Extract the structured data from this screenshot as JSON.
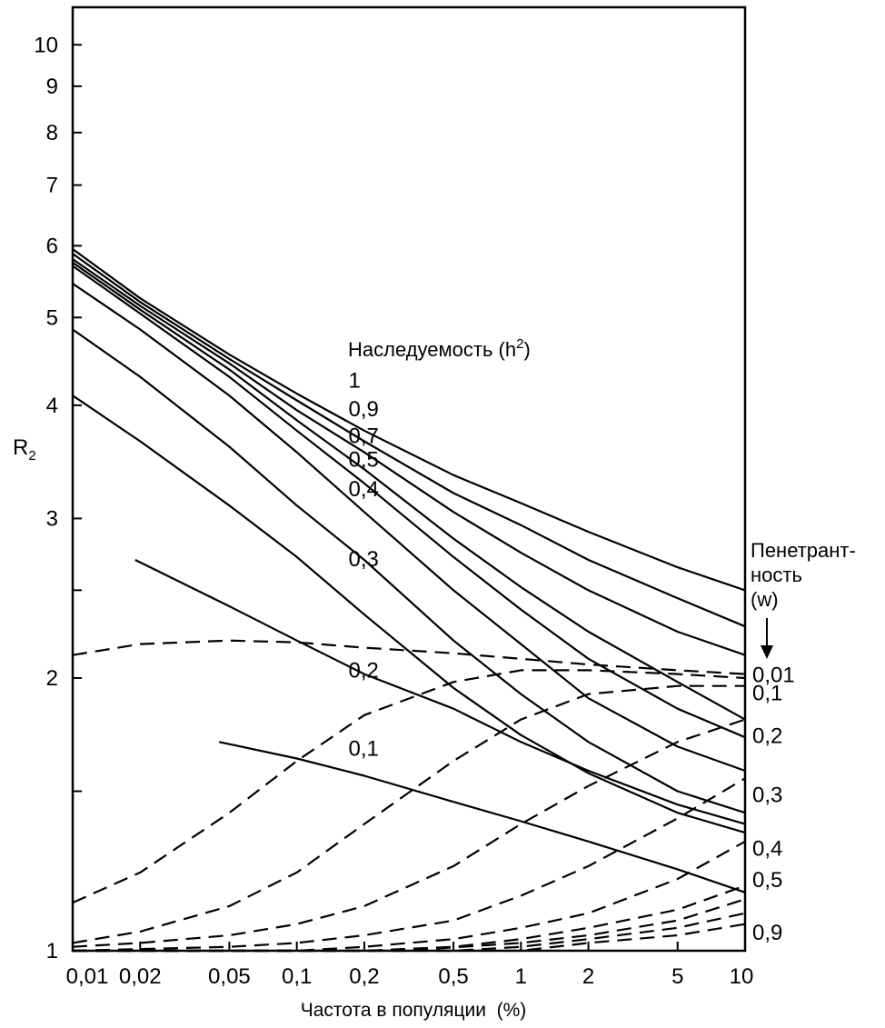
{
  "chart_data": {
    "type": "line",
    "title": "",
    "xlabel": "Частота в популяции  (%)",
    "ylabel": "R",
    "ylabel_subscript": "2",
    "x_scale": "log",
    "y_scale": "log",
    "xlim": [
      0.01,
      10
    ],
    "ylim": [
      1,
      11
    ],
    "x_ticks": [
      {
        "value": 0.01,
        "label": "0,01"
      },
      {
        "value": 0.02,
        "label": "0,02"
      },
      {
        "value": 0.05,
        "label": "0,05"
      },
      {
        "value": 0.1,
        "label": "0,1"
      },
      {
        "value": 0.2,
        "label": "0,2"
      },
      {
        "value": 0.5,
        "label": "0,5"
      },
      {
        "value": 1,
        "label": "1"
      },
      {
        "value": 2,
        "label": "2"
      },
      {
        "value": 5,
        "label": "5"
      },
      {
        "value": 10,
        "label": "10"
      }
    ],
    "y_ticks": [
      {
        "value": 1,
        "label": "1"
      },
      {
        "value": 1.5,
        "label": ""
      },
      {
        "value": 2,
        "label": "2"
      },
      {
        "value": 2.5,
        "label": ""
      },
      {
        "value": 3,
        "label": "3"
      },
      {
        "value": 4,
        "label": "4"
      },
      {
        "value": 5,
        "label": "5"
      },
      {
        "value": 6,
        "label": "6"
      },
      {
        "value": 7,
        "label": "7"
      },
      {
        "value": 8,
        "label": "8"
      },
      {
        "value": 9,
        "label": "9"
      },
      {
        "value": 10,
        "label": "10"
      }
    ],
    "heritability_title_text": "Наследуемость (h",
    "heritability_title_sup": "2",
    "heritability_title_close": ")",
    "penetrance_title_lines": [
      "Пенетрант-",
      "ность",
      "(w)"
    ],
    "series": [
      {
        "name": "1",
        "group": "heritability",
        "style": "solid",
        "label_at": [
          0.17,
          4.28
        ],
        "points": [
          [
            0.01,
            5.95
          ],
          [
            0.02,
            5.25
          ],
          [
            0.05,
            4.55
          ],
          [
            0.1,
            4.12
          ],
          [
            0.2,
            3.75
          ],
          [
            0.5,
            3.35
          ],
          [
            1,
            3.12
          ],
          [
            2,
            2.9
          ],
          [
            5,
            2.65
          ],
          [
            10,
            2.5
          ]
        ]
      },
      {
        "name": "0,9",
        "group": "heritability",
        "style": "solid",
        "label_at": [
          0.17,
          3.98
        ],
        "points": [
          [
            0.01,
            5.88
          ],
          [
            0.02,
            5.2
          ],
          [
            0.05,
            4.5
          ],
          [
            0.1,
            4.05
          ],
          [
            0.2,
            3.65
          ],
          [
            0.5,
            3.2
          ],
          [
            1,
            2.95
          ],
          [
            2,
            2.7
          ],
          [
            5,
            2.45
          ],
          [
            10,
            2.28
          ]
        ]
      },
      {
        "name": "0,7",
        "group": "heritability",
        "style": "solid",
        "label_at": [
          0.17,
          3.72
        ],
        "points": [
          [
            0.01,
            5.8
          ],
          [
            0.02,
            5.15
          ],
          [
            0.05,
            4.45
          ],
          [
            0.1,
            3.95
          ],
          [
            0.2,
            3.55
          ],
          [
            0.5,
            3.05
          ],
          [
            1,
            2.75
          ],
          [
            2,
            2.5
          ],
          [
            5,
            2.25
          ],
          [
            10,
            2.12
          ]
        ]
      },
      {
        "name": "0,5",
        "group": "heritability",
        "style": "solid",
        "label_at": [
          0.17,
          3.5
        ],
        "points": [
          [
            0.01,
            5.75
          ],
          [
            0.02,
            5.1
          ],
          [
            0.05,
            4.38
          ],
          [
            0.1,
            3.85
          ],
          [
            0.2,
            3.4
          ],
          [
            0.5,
            2.85
          ],
          [
            1,
            2.52
          ],
          [
            2,
            2.25
          ],
          [
            5,
            1.98
          ],
          [
            10,
            1.8
          ]
        ]
      },
      {
        "name": "0,4",
        "group": "heritability",
        "style": "solid",
        "label_at": [
          0.17,
          3.25
        ],
        "points": [
          [
            0.01,
            5.7
          ],
          [
            0.02,
            5.05
          ],
          [
            0.05,
            4.3
          ],
          [
            0.1,
            3.75
          ],
          [
            0.2,
            3.28
          ],
          [
            0.5,
            2.72
          ],
          [
            1,
            2.38
          ],
          [
            2,
            2.1
          ],
          [
            5,
            1.85
          ],
          [
            10,
            1.72
          ]
        ]
      },
      {
        "name": "0,3",
        "group": "heritability",
        "style": "solid",
        "label_at": [
          0.17,
          2.72
        ],
        "points": [
          [
            0.01,
            5.45
          ],
          [
            0.02,
            4.85
          ],
          [
            0.05,
            4.1
          ],
          [
            0.1,
            3.55
          ],
          [
            0.2,
            3.05
          ],
          [
            0.5,
            2.5
          ],
          [
            1,
            2.18
          ],
          [
            2,
            1.9
          ],
          [
            5,
            1.68
          ],
          [
            10,
            1.58
          ]
        ]
      },
      {
        "name": "0,2",
        "group": "heritability",
        "style": "solid",
        "label_at": [
          0.17,
          2.05
        ],
        "points": [
          [
            0.01,
            4.85
          ],
          [
            0.02,
            4.3
          ],
          [
            0.05,
            3.6
          ],
          [
            0.1,
            3.1
          ],
          [
            0.2,
            2.7
          ],
          [
            0.5,
            2.2
          ],
          [
            1,
            1.92
          ],
          [
            2,
            1.7
          ],
          [
            5,
            1.5
          ],
          [
            10,
            1.42
          ]
        ]
      },
      {
        "name": "0,1",
        "group": "heritability",
        "style": "solid",
        "label_at": [
          0.17,
          1.68
        ],
        "points": [
          [
            0.01,
            4.1
          ],
          [
            0.02,
            3.65
          ],
          [
            0.05,
            3.1
          ],
          [
            0.1,
            2.72
          ],
          [
            0.2,
            2.35
          ],
          [
            0.5,
            1.95
          ],
          [
            1,
            1.73
          ],
          [
            2,
            1.57
          ],
          [
            5,
            1.42
          ],
          [
            10,
            1.35
          ]
        ]
      },
      {
        "name": "",
        "group": "heritability",
        "style": "solid",
        "points": [
          [
            0.019,
            2.7
          ],
          [
            0.05,
            2.4
          ],
          [
            0.1,
            2.2
          ],
          [
            0.2,
            2.02
          ],
          [
            0.5,
            1.85
          ],
          [
            1,
            1.7
          ],
          [
            2,
            1.58
          ],
          [
            5,
            1.45
          ],
          [
            10,
            1.38
          ]
        ]
      },
      {
        "name": "",
        "group": "heritability",
        "style": "solid",
        "points": [
          [
            0.045,
            1.7
          ],
          [
            0.1,
            1.63
          ],
          [
            0.2,
            1.56
          ],
          [
            0.5,
            1.46
          ],
          [
            1,
            1.39
          ],
          [
            2,
            1.32
          ],
          [
            5,
            1.23
          ],
          [
            10,
            1.16
          ]
        ]
      },
      {
        "name": "0,01",
        "group": "penetrance",
        "style": "dashed",
        "points": [
          [
            0.01,
            2.12
          ],
          [
            0.02,
            2.18
          ],
          [
            0.05,
            2.2
          ],
          [
            0.1,
            2.19
          ],
          [
            0.2,
            2.16
          ],
          [
            0.5,
            2.13
          ],
          [
            1,
            2.1
          ],
          [
            2,
            2.07
          ],
          [
            5,
            2.04
          ],
          [
            10,
            2.02
          ]
        ]
      },
      {
        "name": "0,1",
        "group": "penetrance",
        "style": "dashed",
        "points": [
          [
            0.01,
            1.13
          ],
          [
            0.02,
            1.22
          ],
          [
            0.05,
            1.42
          ],
          [
            0.1,
            1.62
          ],
          [
            0.2,
            1.82
          ],
          [
            0.5,
            1.98
          ],
          [
            1,
            2.04
          ],
          [
            2,
            2.04
          ],
          [
            5,
            2.02
          ],
          [
            10,
            2.0
          ]
        ]
      },
      {
        "name": "0,2",
        "group": "penetrance",
        "style": "dashed",
        "points": [
          [
            0.01,
            1.02
          ],
          [
            0.02,
            1.05
          ],
          [
            0.05,
            1.12
          ],
          [
            0.1,
            1.22
          ],
          [
            0.2,
            1.38
          ],
          [
            0.5,
            1.62
          ],
          [
            1,
            1.8
          ],
          [
            2,
            1.92
          ],
          [
            5,
            1.96
          ],
          [
            10,
            1.96
          ]
        ]
      },
      {
        "name": "0,3",
        "group": "penetrance",
        "style": "dashed",
        "points": [
          [
            0.01,
            1.01
          ],
          [
            0.02,
            1.02
          ],
          [
            0.05,
            1.04
          ],
          [
            0.1,
            1.07
          ],
          [
            0.2,
            1.12
          ],
          [
            0.5,
            1.24
          ],
          [
            1,
            1.38
          ],
          [
            2,
            1.52
          ],
          [
            5,
            1.7
          ],
          [
            10,
            1.8
          ]
        ]
      },
      {
        "name": "0,4",
        "group": "penetrance",
        "style": "dashed",
        "points": [
          [
            0.01,
            1.0
          ],
          [
            0.05,
            1.01
          ],
          [
            0.1,
            1.02
          ],
          [
            0.2,
            1.04
          ],
          [
            0.5,
            1.08
          ],
          [
            1,
            1.15
          ],
          [
            2,
            1.24
          ],
          [
            5,
            1.4
          ],
          [
            10,
            1.55
          ]
        ]
      },
      {
        "name": "0,5",
        "group": "penetrance",
        "style": "dashed",
        "points": [
          [
            0.01,
            1.0
          ],
          [
            0.1,
            1.0
          ],
          [
            0.2,
            1.01
          ],
          [
            0.5,
            1.03
          ],
          [
            1,
            1.06
          ],
          [
            2,
            1.1
          ],
          [
            5,
            1.2
          ],
          [
            10,
            1.32
          ]
        ]
      },
      {
        "name": "",
        "group": "penetrance",
        "style": "dashed",
        "points": [
          [
            0.01,
            1.0
          ],
          [
            0.2,
            1.0
          ],
          [
            0.5,
            1.01
          ],
          [
            1,
            1.03
          ],
          [
            2,
            1.06
          ],
          [
            5,
            1.11
          ],
          [
            10,
            1.18
          ]
        ]
      },
      {
        "name": "",
        "group": "penetrance",
        "style": "dashed",
        "points": [
          [
            0.01,
            1.0
          ],
          [
            0.3,
            1.0
          ],
          [
            1,
            1.02
          ],
          [
            2,
            1.04
          ],
          [
            5,
            1.08
          ],
          [
            10,
            1.14
          ]
        ]
      },
      {
        "name": "",
        "group": "penetrance",
        "style": "dashed",
        "points": [
          [
            0.01,
            1.0
          ],
          [
            0.5,
            1.0
          ],
          [
            1,
            1.01
          ],
          [
            2,
            1.03
          ],
          [
            5,
            1.06
          ],
          [
            10,
            1.1
          ]
        ]
      },
      {
        "name": "0,9",
        "group": "penetrance",
        "style": "dashed",
        "points": [
          [
            0.01,
            1.0
          ],
          [
            1,
            1.0
          ],
          [
            2,
            1.02
          ],
          [
            5,
            1.04
          ],
          [
            10,
            1.07
          ]
        ]
      }
    ],
    "penetrance_label_values": [
      {
        "label": "0,01",
        "y": 2.02
      },
      {
        "label": "0,1",
        "y": 1.93
      },
      {
        "label": "0,2",
        "y": 1.73
      },
      {
        "label": "0,3",
        "y": 1.49
      },
      {
        "label": "0,4",
        "y": 1.3
      },
      {
        "label": "0,5",
        "y": 1.2
      },
      {
        "label": "0,9",
        "y": 1.05
      }
    ]
  }
}
